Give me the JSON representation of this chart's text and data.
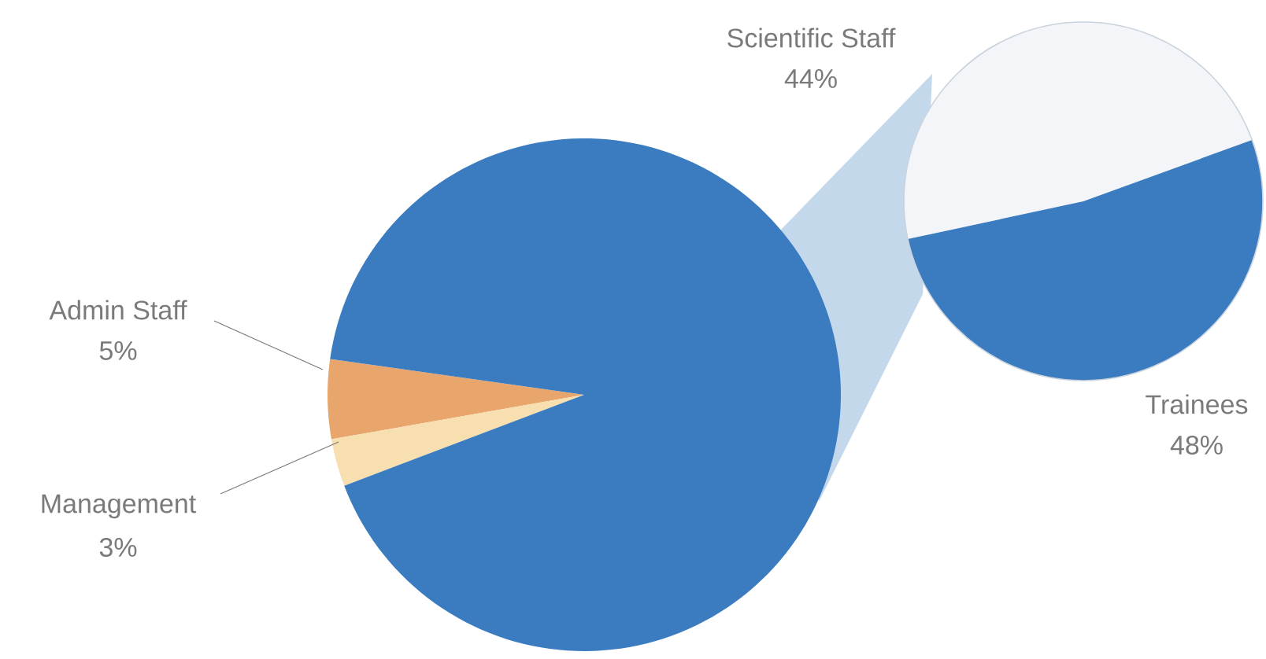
{
  "chart_data": [
    {
      "type": "pie",
      "categories": [
        "Admin Staff",
        "Management",
        null
      ],
      "values": [
        5,
        3,
        92
      ],
      "value_labels": [
        "5%",
        "3%",
        null
      ],
      "colors": [
        "#e9a66c",
        "#f7dfb0",
        "#3b7cc0"
      ]
    },
    {
      "type": "pie",
      "categories": [
        "Scientific Staff",
        "Trainees"
      ],
      "values": [
        44,
        48
      ],
      "value_labels": [
        "44%",
        "48%"
      ],
      "colors": [
        "#f3f5f8",
        "#3b7cc0"
      ]
    }
  ]
}
